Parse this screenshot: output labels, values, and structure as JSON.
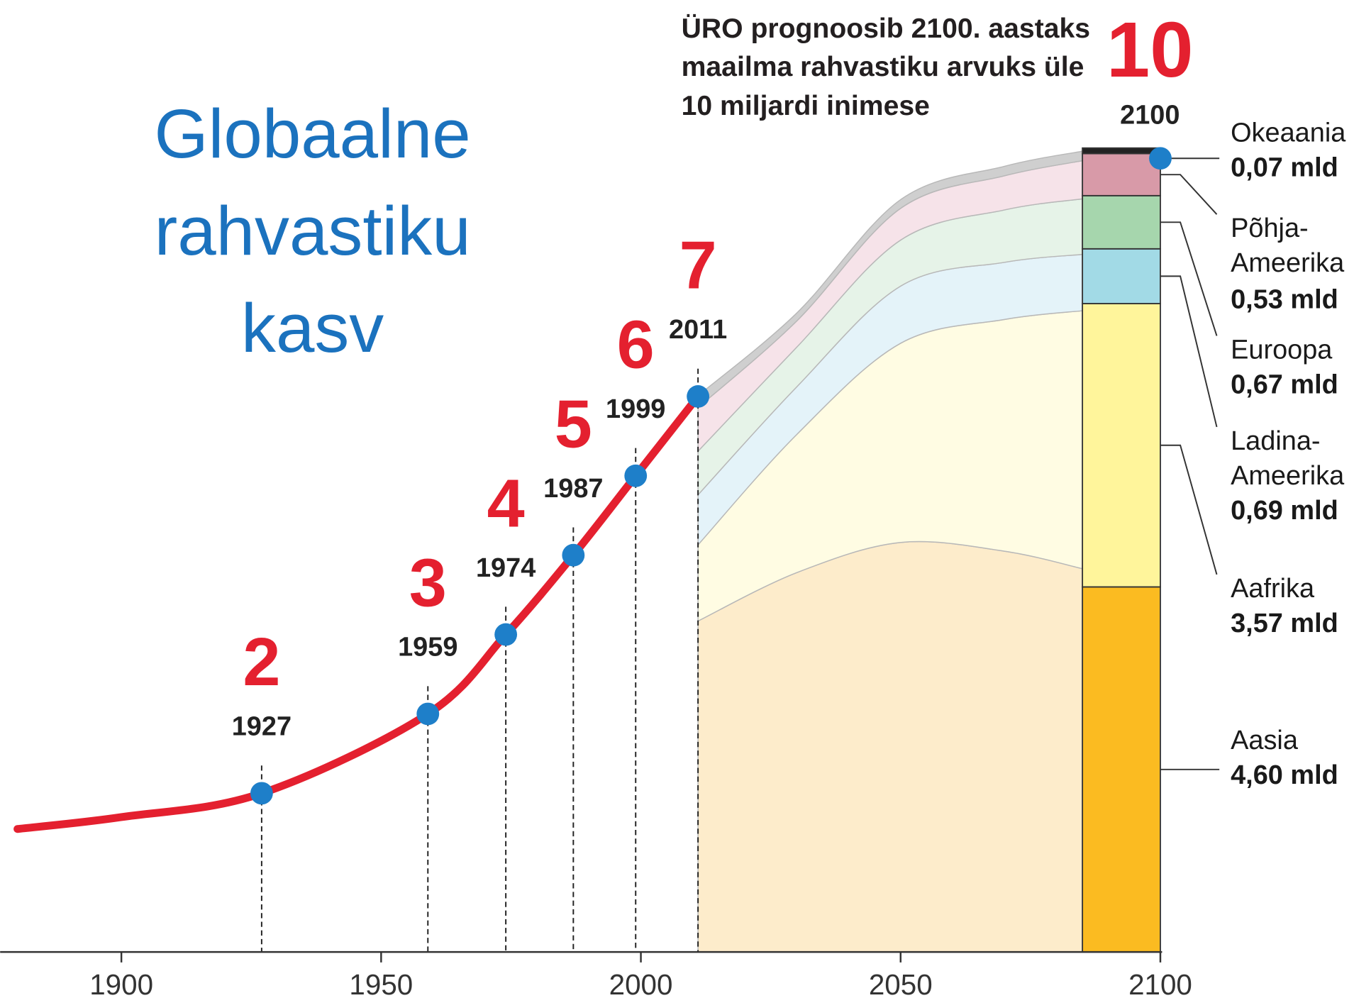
{
  "chart_data": {
    "type": "line",
    "title": "Globaalne rahvastiku kasv",
    "note": [
      "ÜRO prognoosib 2100. aastaks",
      "maailma rahvastiku arvuks üle",
      "10 miljardi inimese"
    ],
    "xlim": [
      1880,
      2100
    ],
    "xticks": [
      1900,
      1950,
      2000,
      2050,
      2100
    ],
    "ylim": [
      0,
      11
    ],
    "color": "#e4202f",
    "x": [
      1880,
      1900,
      1927,
      1959,
      1974,
      1987,
      1999,
      2011
    ],
    "values": [
      1.55,
      1.7,
      2,
      3,
      4,
      5,
      6,
      7
    ],
    "milestones": {
      "color": "#1e7fc9",
      "label_color": "#e4202f",
      "x": [
        1927,
        1959,
        1974,
        1987,
        1999,
        2011,
        2100
      ],
      "values": [
        2,
        3,
        4,
        5,
        6,
        7,
        10
      ]
    },
    "forecast": {
      "type": "area",
      "x": [
        2011,
        2030,
        2050,
        2070,
        2085
      ],
      "series": [
        {
          "color": "#fdeccb",
          "values": [
            4.17,
            4.78,
            5.16,
            5.05,
            4.83
          ]
        },
        {
          "color": "#fffce3",
          "values": [
            0.96,
            1.74,
            2.51,
            2.92,
            3.25
          ]
        },
        {
          "color": "#e4f3f9",
          "values": [
            0.63,
            0.6,
            0.72,
            0.72,
            0.71
          ]
        },
        {
          "color": "#e6f3e8",
          "values": [
            0.55,
            0.5,
            0.58,
            0.66,
            0.7
          ]
        },
        {
          "color": "#f6e3e9",
          "values": [
            0.55,
            0.33,
            0.4,
            0.43,
            0.48
          ]
        },
        {
          "color": "#cfcfcf",
          "values": [
            0.15,
            0.1,
            0.11,
            0.12,
            0.12
          ]
        }
      ]
    },
    "regions": {
      "type": "bar",
      "xspan": [
        2085,
        2100
      ],
      "names": [
        "Aasia",
        "Aafrika",
        "Ladina-Ameerika",
        "Euroopa",
        "Põhja-Ameerika",
        "Okeaania"
      ],
      "colors": [
        "#fbbb21",
        "#fff59b",
        "#a2dae6",
        "#a6d6ad",
        "#d89aa8",
        "#222222"
      ],
      "values": [
        4.6,
        3.57,
        0.69,
        0.67,
        0.53,
        0.07
      ],
      "value_labels": [
        "4,60 mld",
        "3,57 mld",
        "0,69 mld",
        "0,67 mld",
        "0,53 mld",
        "0,07 mld"
      ]
    }
  }
}
